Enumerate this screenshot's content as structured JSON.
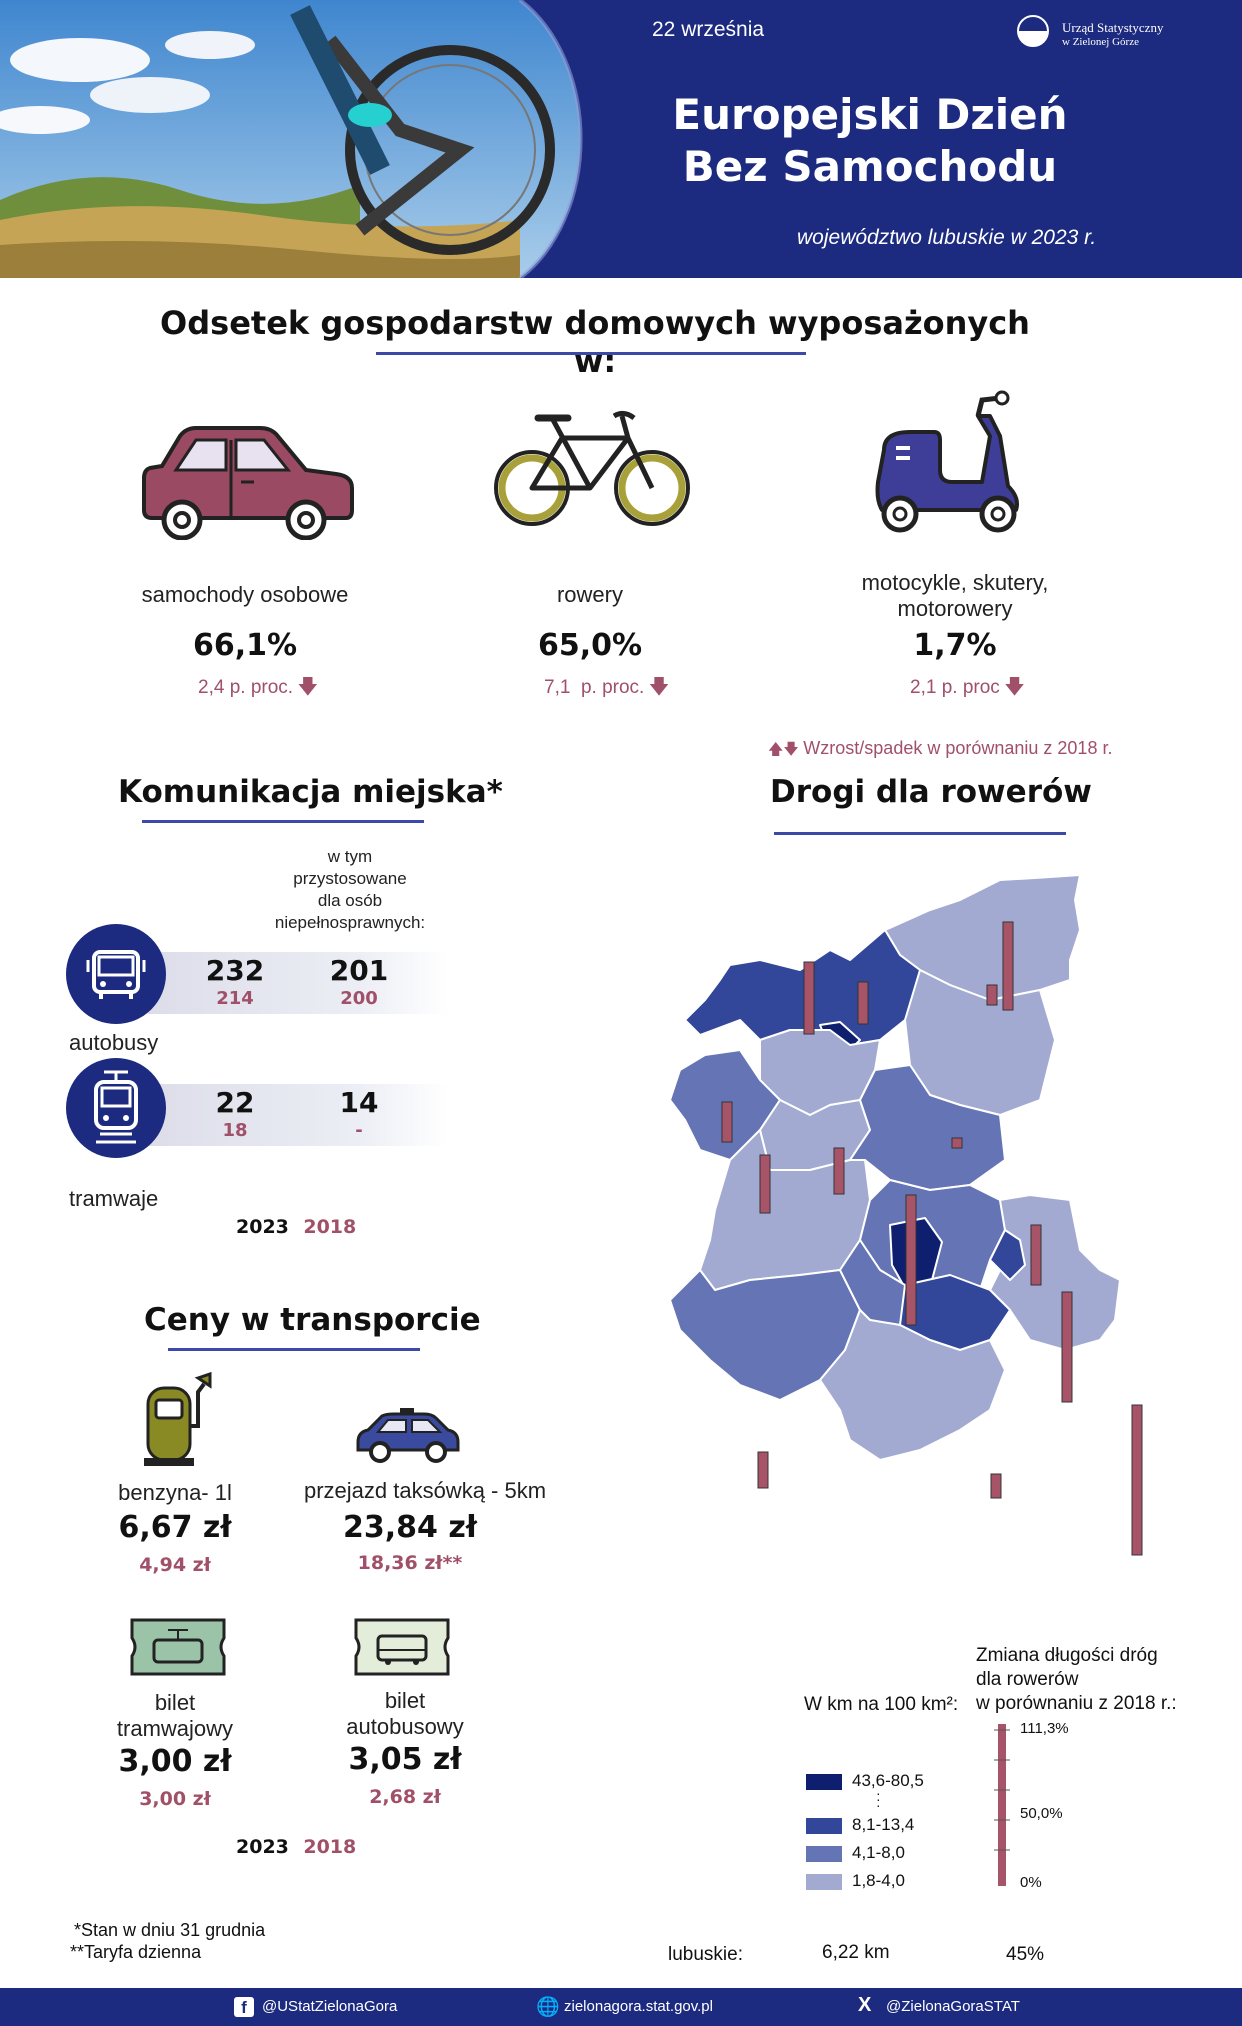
{
  "header": {
    "date": "22 września",
    "logo_line1": "Urząd Statystyczny",
    "logo_line2": "w Zielonej Górze",
    "title_line1": "Europejski Dzień",
    "title_line2": "Bez Samochodu",
    "subtitle": "województwo lubuskie w 2023 r."
  },
  "households": {
    "title": "Odsetek gospodarstw domowych wyposażonych w:",
    "items": [
      {
        "label": "samochody osobowe",
        "value": "66,1%",
        "change": "2,4 p. proc.",
        "icon": "car-icon"
      },
      {
        "label": "rowery",
        "value": "65,0%",
        "change": "7,1  p. proc.",
        "icon": "bicycle-icon"
      },
      {
        "label_line1": "motocykle, skutery,",
        "label_line2": "motorowery",
        "value": "1,7%",
        "change": "2,1 p. proc",
        "icon": "scooter-icon"
      }
    ],
    "trend_note": "Wzrost/spadek w porównaniu z 2018 r."
  },
  "transit": {
    "title": "Komunikacja miejska*",
    "accessible_header": [
      "w tym",
      "przystosowane",
      "dla osób",
      "niepełnosprawnych:"
    ],
    "buses": {
      "label": "autobusy",
      "total_2023": "232",
      "total_2018": "214",
      "accessible_2023": "201",
      "accessible_2018": "200"
    },
    "trams": {
      "label": "tramwaje",
      "total_2023": "22",
      "total_2018": "18",
      "accessible_2023": "14",
      "accessible_2018": "-"
    },
    "year_2023": "2023",
    "year_2018": "2018"
  },
  "prices": {
    "title": "Ceny w transporcie",
    "petrol": {
      "label": "benzyna- 1l",
      "value_2023": "6,67 zł",
      "value_2018": "4,94 zł"
    },
    "taxi": {
      "label": "przejazd taksówką - 5km",
      "value_2023": "23,84 zł",
      "value_2018": "18,36 zł**"
    },
    "tram_ticket": {
      "label_line1": "bilet",
      "label_line2": "tramwajowy",
      "value_2023": "3,00 zł",
      "value_2018": "3,00 zł"
    },
    "bus_ticket": {
      "label_line1": "bilet",
      "label_line2": "autobusowy",
      "value_2023": "3,05 zł",
      "value_2018": "2,68 zł"
    },
    "year_2023": "2023",
    "year_2018": "2018"
  },
  "bike_roads": {
    "title": "Drogi dla rowerów",
    "density_legend_title": "W km na 100 km²:",
    "density_classes": [
      {
        "label": "43,6-80,5",
        "color": "#0d1f6e"
      },
      {
        "label": "8,1-13,4",
        "color": "#32479a"
      },
      {
        "label": "4,1-8,0",
        "color": "#6474b4"
      },
      {
        "label": "1,8-4,0",
        "color": "#a2aad1"
      }
    ],
    "change_legend_title": [
      "Zmiana długości dróg",
      "dla rowerów",
      "w porównaniu z 2018 r.:"
    ],
    "change_scale": [
      "111,3%",
      "50,0%",
      "0%"
    ],
    "region_label": "lubuskie:",
    "region_density": "6,22 km",
    "region_change": "45%",
    "change_bar_color": "#a85468"
  },
  "footnotes": {
    "note1": "*Stan w dniu 31 grudnia",
    "note2": "**Taryfa dzienna"
  },
  "footer": {
    "facebook": "@UStatZielonaGora",
    "website": "zielonagora.stat.gov.pl",
    "x_handle": "@ZielonaGoraSTAT"
  }
}
